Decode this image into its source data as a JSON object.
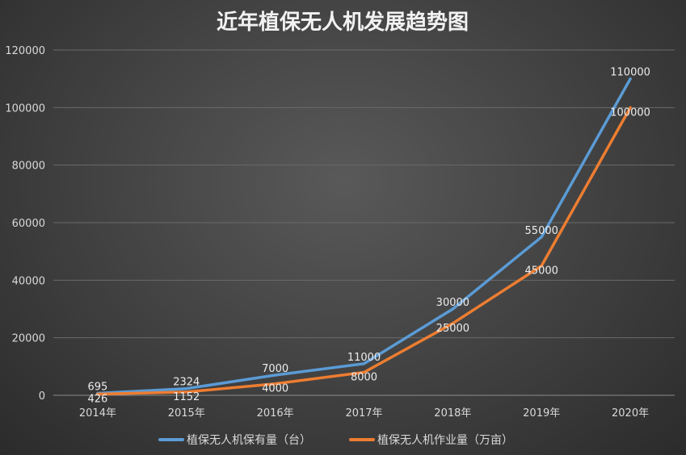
{
  "chart_data": {
    "type": "line",
    "title": "近年植保无人机发展趋势图",
    "categories": [
      "2014年",
      "2015年",
      "2016年",
      "2017年",
      "2018年",
      "2019年",
      "2020年"
    ],
    "ylim": [
      0,
      120000
    ],
    "yticks": [
      "0",
      "20000",
      "40000",
      "60000",
      "80000",
      "100000",
      "120000"
    ],
    "grid": true,
    "legend_position": "bottom",
    "series": [
      {
        "name": "植保无人机保有量（台）",
        "color": "#5b9bd5",
        "values": [
          695,
          2324,
          7000,
          11000,
          30000,
          55000,
          110000
        ],
        "labels": [
          "695",
          "2324",
          "7000",
          "11000",
          "30000",
          "55000",
          "110000"
        ]
      },
      {
        "name": "植保无人机作业量（万亩）",
        "color": "#ed7d31",
        "values": [
          426,
          1152,
          4000,
          8000,
          25000,
          45000,
          100000
        ],
        "labels": [
          "426",
          "1152",
          "4000",
          "8000",
          "25000",
          "45000",
          "100000"
        ]
      }
    ]
  }
}
